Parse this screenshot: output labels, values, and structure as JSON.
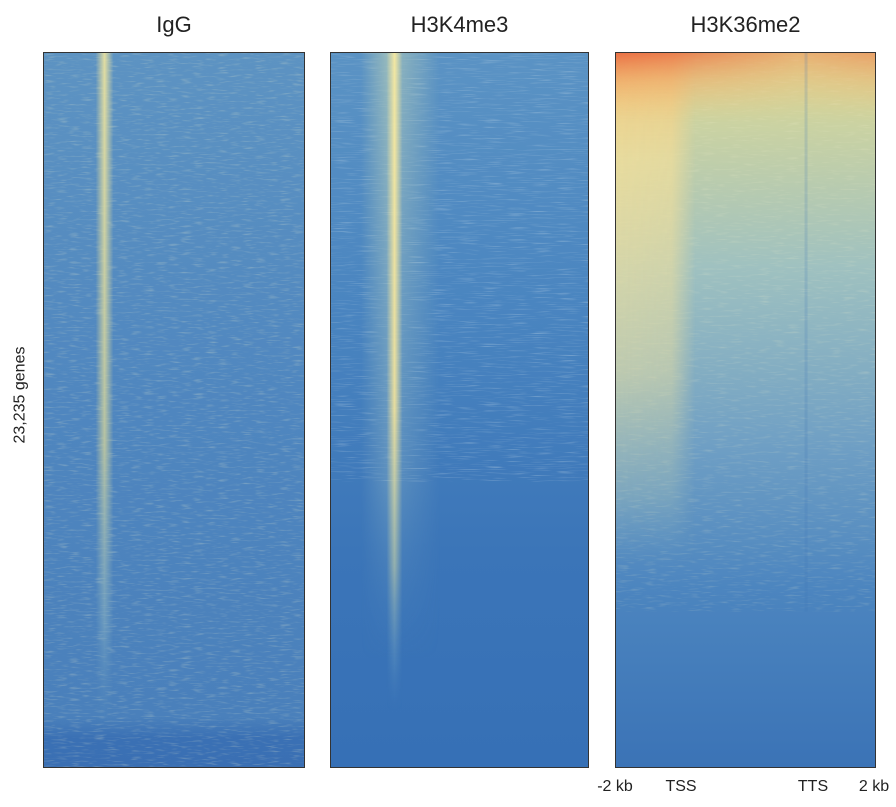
{
  "chart_data": {
    "type": "heatmap",
    "ylabel": "23,235 genes",
    "x_ticks": [
      "-2 kb",
      "TSS",
      "TTS",
      "2 kb"
    ],
    "colormap": [
      "#3b73b6",
      "#5b93c4",
      "#9fc3c4",
      "#e9e1a0",
      "#f7c979",
      "#e8623c"
    ],
    "panels": [
      {
        "title": "IgG",
        "signal_profile": "weak uniform background with faint enrichment band at TSS across most genes"
      },
      {
        "title": "H3K4me3",
        "signal_profile": "strong sharp band at TSS, decreasing with gene rank; background low"
      },
      {
        "title": "H3K36me2",
        "signal_profile": "broad enrichment over gene bodies, strongest near TSS in top-ranked genes, fading in lower ranks"
      }
    ]
  }
}
